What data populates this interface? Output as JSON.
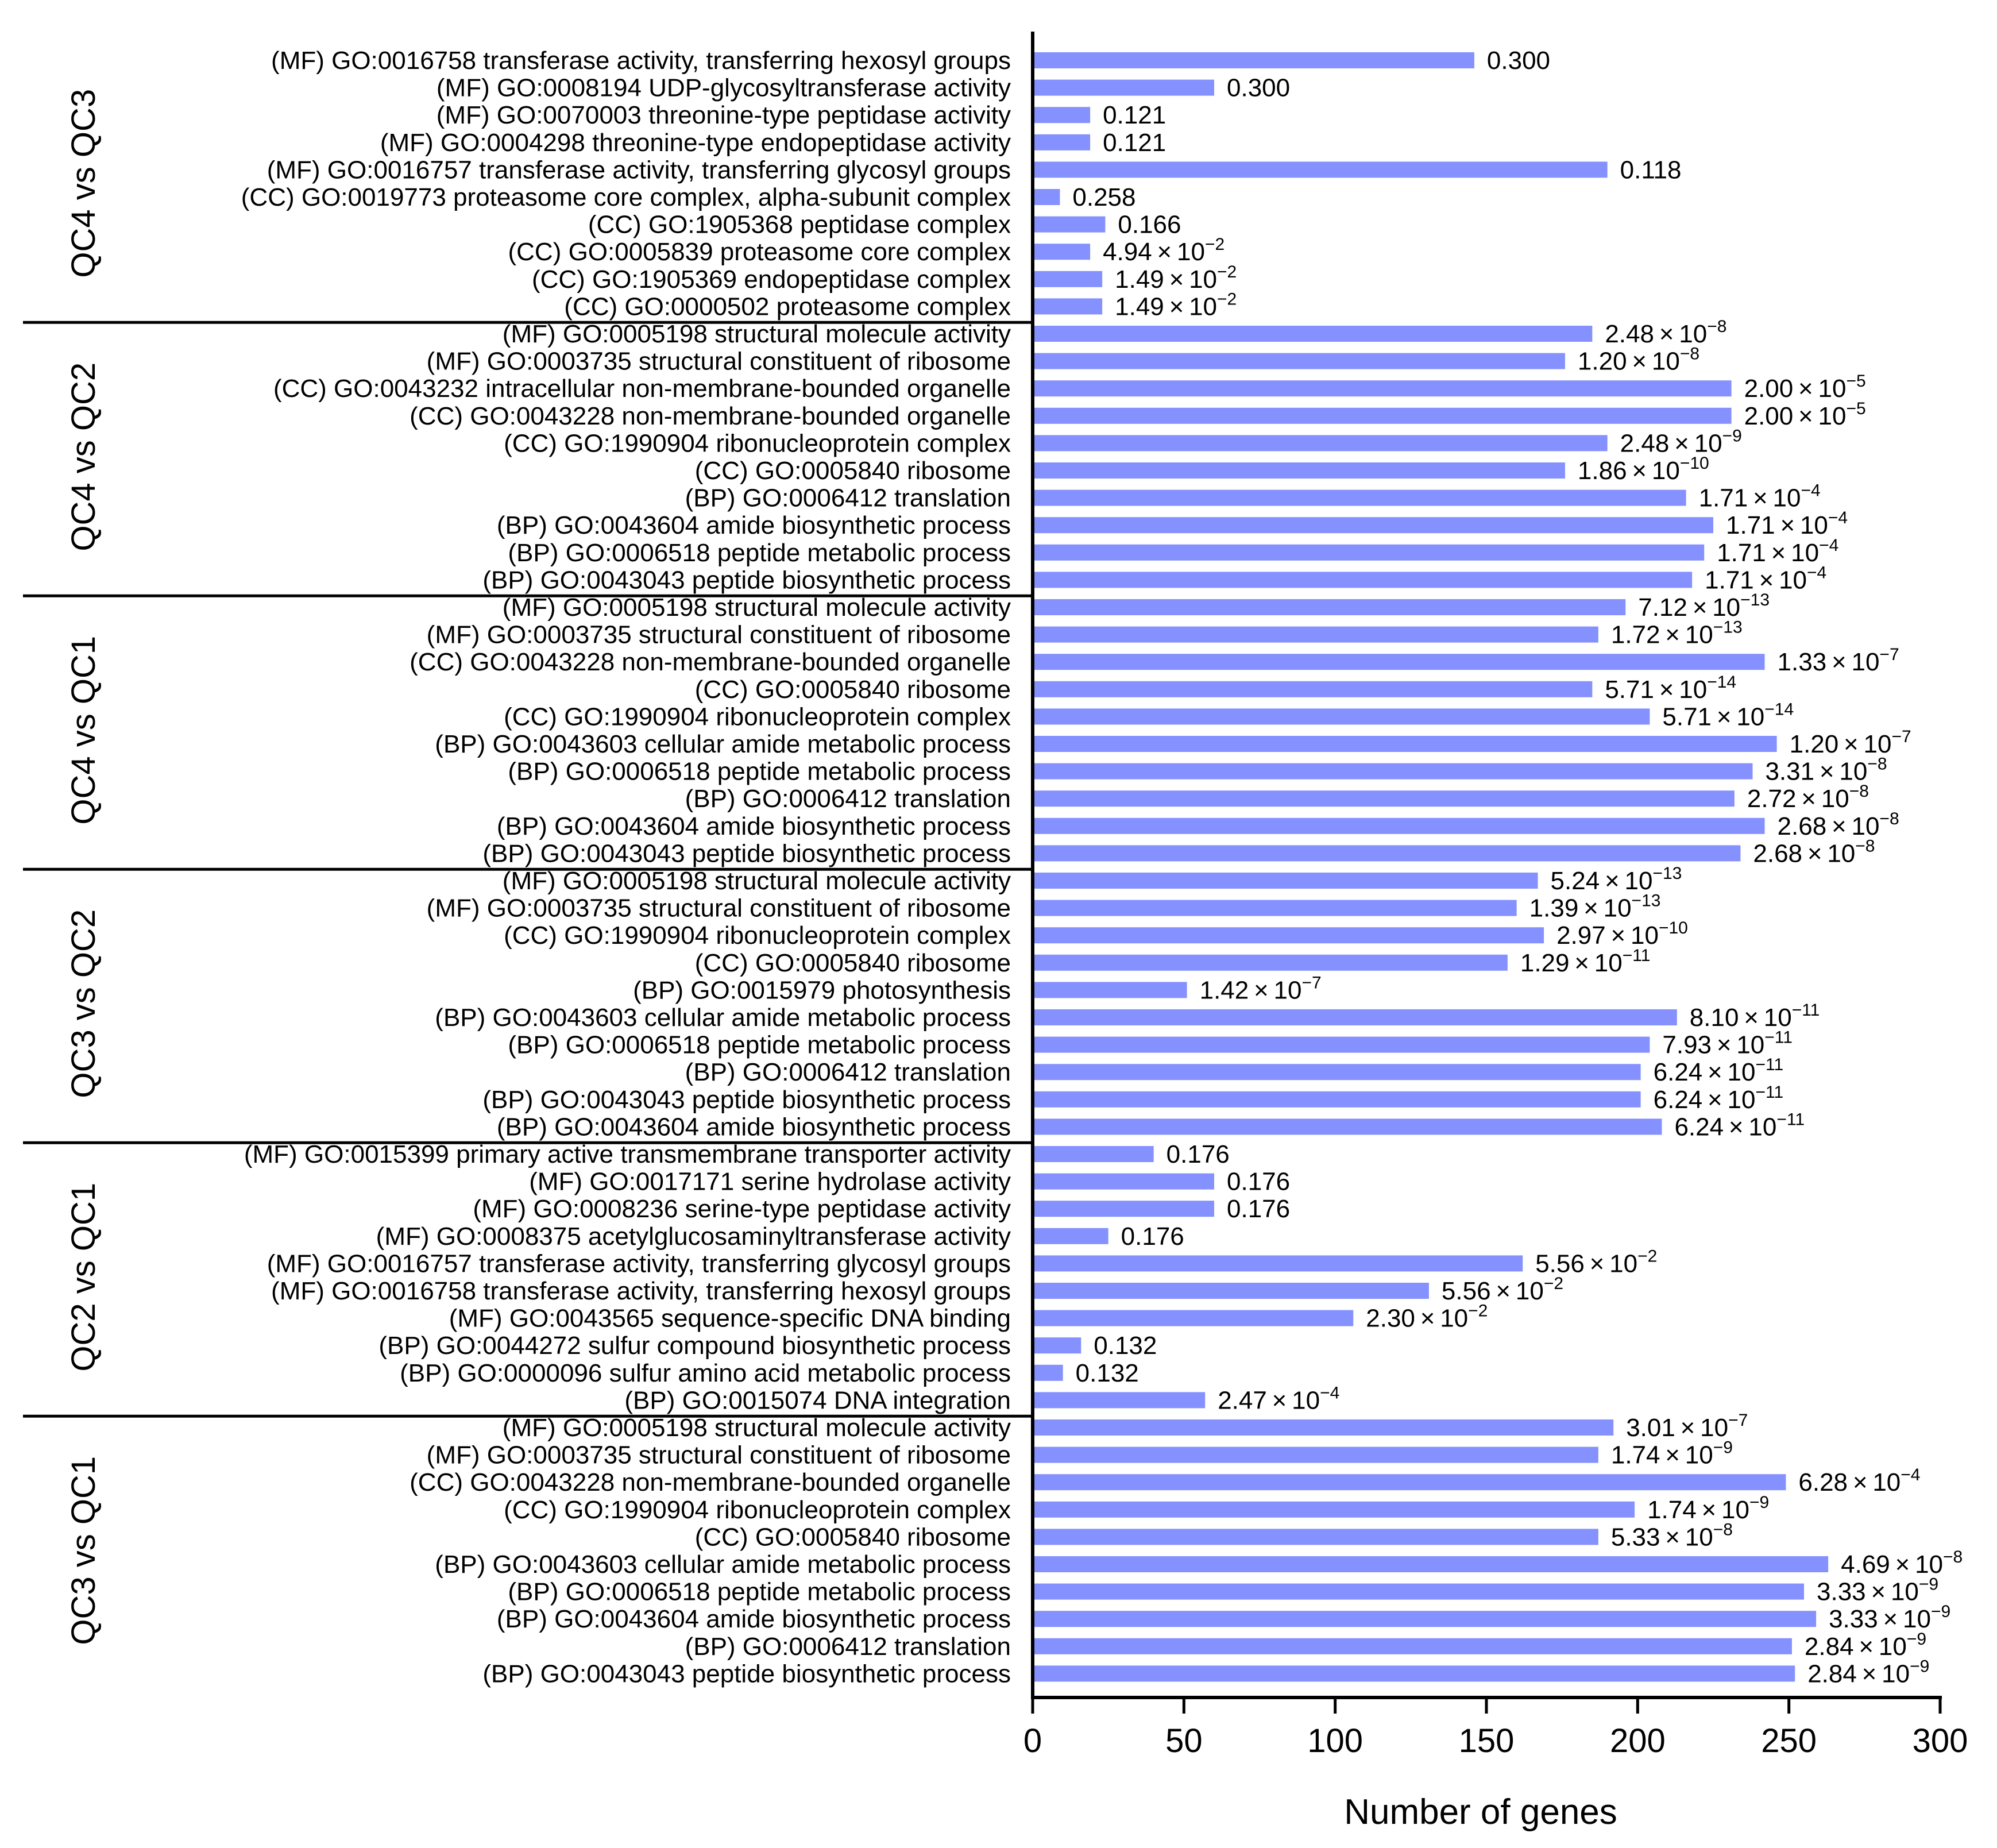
{
  "chart_data": {
    "type": "bar",
    "orientation": "horizontal",
    "xlabel": "Number of genes",
    "xlim": [
      0,
      300
    ],
    "xticks": [
      0,
      50,
      100,
      150,
      200,
      250,
      300
    ],
    "bar_color": "#8491ff",
    "groups": [
      {
        "name": "QC4 vs QC3",
        "items": [
          {
            "label": "(MF) GO:0016758 transferase activity, transferring hexosyl groups",
            "value": 146,
            "p": "0.300"
          },
          {
            "label": "(MF) GO:0008194 UDP-glycosyltransferase activity",
            "value": 60,
            "p": "0.300"
          },
          {
            "label": "(MF) GO:0070003 threonine-type peptidase activity",
            "value": 19,
            "p": "0.121"
          },
          {
            "label": "(MF) GO:0004298 threonine-type endopeptidase activity",
            "value": 19,
            "p": "0.121"
          },
          {
            "label": "(MF) GO:0016757 transferase activity, transferring glycosyl groups",
            "value": 190,
            "p": "0.118"
          },
          {
            "label": "(CC) GO:0019773 proteasome core complex, alpha-subunit complex",
            "value": 9,
            "p": "0.258"
          },
          {
            "label": "(CC) GO:1905368 peptidase complex",
            "value": 24,
            "p": "0.166"
          },
          {
            "label": "(CC) GO:0005839 proteasome core complex",
            "value": 19,
            "p": "4.94×10⁻²",
            "mant": "4.94",
            "exp": "−2"
          },
          {
            "label": "(CC) GO:1905369 endopeptidase complex",
            "value": 23,
            "p": "1.49×10⁻²",
            "mant": "1.49",
            "exp": "−2"
          },
          {
            "label": "(CC) GO:0000502 proteasome complex",
            "value": 23,
            "p": "1.49×10⁻²",
            "mant": "1.49",
            "exp": "−2"
          }
        ]
      },
      {
        "name": "QC4 vs QC2",
        "items": [
          {
            "label": "(MF) GO:0005198 structural molecule activity",
            "value": 185,
            "p": "2.48×10⁻⁸",
            "mant": "2.48",
            "exp": "−8"
          },
          {
            "label": "(MF) GO:0003735 structural constituent of ribosome",
            "value": 176,
            "p": "1.20×10⁻⁸",
            "mant": "1.20",
            "exp": "−8"
          },
          {
            "label": "(CC) GO:0043232 intracellular non-membrane-bounded organelle",
            "value": 231,
            "p": "2.00×10⁻⁵",
            "mant": "2.00",
            "exp": "−5"
          },
          {
            "label": "(CC) GO:0043228 non-membrane-bounded organelle",
            "value": 231,
            "p": "2.00×10⁻⁵",
            "mant": "2.00",
            "exp": "−5"
          },
          {
            "label": "(CC) GO:1990904 ribonucleoprotein complex",
            "value": 190,
            "p": "2.48×10⁻⁹",
            "mant": "2.48",
            "exp": "−9"
          },
          {
            "label": "(CC) GO:0005840 ribosome",
            "value": 176,
            "p": "1.86×10⁻¹⁰",
            "mant": "1.86",
            "exp": "−10"
          },
          {
            "label": "(BP) GO:0006412 translation",
            "value": 216,
            "p": "1.71×10⁻⁴",
            "mant": "1.71",
            "exp": "−4"
          },
          {
            "label": "(BP) GO:0043604 amide biosynthetic process",
            "value": 225,
            "p": "1.71×10⁻⁴",
            "mant": "1.71",
            "exp": "−4"
          },
          {
            "label": "(BP) GO:0006518 peptide metabolic process",
            "value": 222,
            "p": "1.71×10⁻⁴",
            "mant": "1.71",
            "exp": "−4"
          },
          {
            "label": "(BP) GO:0043043 peptide biosynthetic process",
            "value": 218,
            "p": "1.71×10⁻⁴",
            "mant": "1.71",
            "exp": "−4"
          }
        ]
      },
      {
        "name": "QC4 vs QC1",
        "items": [
          {
            "label": "(MF) GO:0005198 structural molecule activity",
            "value": 196,
            "p": "7.12×10⁻¹³",
            "mant": "7.12",
            "exp": "−13"
          },
          {
            "label": "(MF) GO:0003735 structural constituent of ribosome",
            "value": 187,
            "p": "1.72×10⁻¹³",
            "mant": "1.72",
            "exp": "−13"
          },
          {
            "label": "(CC) GO:0043228 non-membrane-bounded organelle",
            "value": 242,
            "p": "1.33×10⁻⁷",
            "mant": "1.33",
            "exp": "−7"
          },
          {
            "label": "(CC) GO:0005840 ribosome",
            "value": 185,
            "p": "5.71×10⁻¹⁴",
            "mant": "5.71",
            "exp": "−14"
          },
          {
            "label": "(CC) GO:1990904 ribonucleoprotein complex",
            "value": 204,
            "p": "5.71×10⁻¹⁴",
            "mant": "5.71",
            "exp": "−14"
          },
          {
            "label": "(BP) GO:0043603 cellular amide metabolic process",
            "value": 246,
            "p": "1.20×10⁻⁷",
            "mant": "1.20",
            "exp": "−7"
          },
          {
            "label": "(BP) GO:0006518 peptide metabolic process",
            "value": 238,
            "p": "3.31×10⁻⁸",
            "mant": "3.31",
            "exp": "−8"
          },
          {
            "label": "(BP) GO:0006412 translation",
            "value": 232,
            "p": "2.72×10⁻⁸",
            "mant": "2.72",
            "exp": "−8"
          },
          {
            "label": "(BP) GO:0043604 amide biosynthetic process",
            "value": 242,
            "p": "2.68×10⁻⁸",
            "mant": "2.68",
            "exp": "−8"
          },
          {
            "label": "(BP) GO:0043043 peptide biosynthetic process",
            "value": 234,
            "p": "2.68×10⁻⁸",
            "mant": "2.68",
            "exp": "−8"
          }
        ]
      },
      {
        "name": "QC3 vs QC2",
        "items": [
          {
            "label": "(MF) GO:0005198 structural molecule activity",
            "value": 167,
            "p": "5.24×10⁻¹³",
            "mant": "5.24",
            "exp": "−13"
          },
          {
            "label": "(MF) GO:0003735 structural constituent of ribosome",
            "value": 160,
            "p": "1.39×10⁻¹³",
            "mant": "1.39",
            "exp": "−13"
          },
          {
            "label": "(CC) GO:1990904 ribonucleoprotein complex",
            "value": 169,
            "p": "2.97×10⁻¹⁰",
            "mant": "2.97",
            "exp": "−10"
          },
          {
            "label": "(CC) GO:0005840 ribosome",
            "value": 157,
            "p": "1.29×10⁻¹¹",
            "mant": "1.29",
            "exp": "−11"
          },
          {
            "label": "(BP) GO:0015979 photosynthesis",
            "value": 51,
            "p": "1.42×10⁻⁷",
            "mant": "1.42",
            "exp": "−7"
          },
          {
            "label": "(BP) GO:0043603 cellular amide metabolic process",
            "value": 213,
            "p": "8.10×10⁻¹¹",
            "mant": "8.10",
            "exp": "−11"
          },
          {
            "label": "(BP) GO:0006518 peptide metabolic process",
            "value": 204,
            "p": "7.93×10⁻¹¹",
            "mant": "7.93",
            "exp": "−11"
          },
          {
            "label": "(BP) GO:0006412 translation",
            "value": 201,
            "p": "6.24×10⁻¹¹",
            "mant": "6.24",
            "exp": "−11"
          },
          {
            "label": "(BP) GO:0043043 peptide biosynthetic process",
            "value": 201,
            "p": "6.24×10⁻¹¹",
            "mant": "6.24",
            "exp": "−11"
          },
          {
            "label": "(BP) GO:0043604 amide biosynthetic process",
            "value": 208,
            "p": "6.24×10⁻¹¹",
            "mant": "6.24",
            "exp": "−11"
          }
        ]
      },
      {
        "name": "QC2 vs QC1",
        "items": [
          {
            "label": "(MF) GO:0015399 primary active transmembrane transporter activity",
            "value": 40,
            "p": "0.176"
          },
          {
            "label": "(MF) GO:0017171 serine hydrolase activity",
            "value": 60,
            "p": "0.176"
          },
          {
            "label": "(MF) GO:0008236 serine-type peptidase activity",
            "value": 60,
            "p": "0.176"
          },
          {
            "label": "(MF) GO:0008375 acetylglucosaminyltransferase activity",
            "value": 25,
            "p": "0.176"
          },
          {
            "label": "(MF) GO:0016757 transferase activity, transferring glycosyl groups",
            "value": 162,
            "p": "5.56×10⁻²",
            "mant": "5.56",
            "exp": "−2"
          },
          {
            "label": "(MF) GO:0016758 transferase activity, transferring hexosyl groups",
            "value": 131,
            "p": "5.56×10⁻²",
            "mant": "5.56",
            "exp": "−2"
          },
          {
            "label": "(MF) GO:0043565 sequence-specific DNA binding",
            "value": 106,
            "p": "2.30×10⁻²",
            "mant": "2.30",
            "exp": "−2"
          },
          {
            "label": "(BP) GO:0044272 sulfur compound biosynthetic process",
            "value": 16,
            "p": "0.132"
          },
          {
            "label": "(BP) GO:0000096 sulfur amino acid metabolic process",
            "value": 10,
            "p": "0.132"
          },
          {
            "label": "(BP) GO:0015074 DNA integration",
            "value": 57,
            "p": "2.47×10⁻⁴",
            "mant": "2.47",
            "exp": "−4"
          }
        ]
      },
      {
        "name": "QC3 vs QC1",
        "items": [
          {
            "label": "(MF) GO:0005198 structural molecule activity",
            "value": 192,
            "p": "3.01×10⁻⁷",
            "mant": "3.01",
            "exp": "−7"
          },
          {
            "label": "(MF) GO:0003735 structural constituent of ribosome",
            "value": 187,
            "p": "1.74×10⁻⁹",
            "mant": "1.74",
            "exp": "−9"
          },
          {
            "label": "(CC) GO:0043228 non-membrane-bounded organelle",
            "value": 249,
            "p": "6.28×10⁻⁴",
            "mant": "6.28",
            "exp": "−4"
          },
          {
            "label": "(CC) GO:1990904 ribonucleoprotein complex",
            "value": 199,
            "p": "1.74×10⁻⁹",
            "mant": "1.74",
            "exp": "−9"
          },
          {
            "label": "(CC) GO:0005840 ribosome",
            "value": 187,
            "p": "5.33×10⁻⁸",
            "mant": "5.33",
            "exp": "−8"
          },
          {
            "label": "(BP) GO:0043603 cellular amide metabolic process",
            "value": 263,
            "p": "4.69×10⁻⁸",
            "mant": "4.69",
            "exp": "−8"
          },
          {
            "label": "(BP) GO:0006518 peptide metabolic process",
            "value": 255,
            "p": "3.33×10⁻⁹",
            "mant": "3.33",
            "exp": "−9"
          },
          {
            "label": "(BP) GO:0043604 amide biosynthetic process",
            "value": 259,
            "p": "3.33×10⁻⁹",
            "mant": "3.33",
            "exp": "−9"
          },
          {
            "label": "(BP) GO:0006412 translation",
            "value": 251,
            "p": "2.84×10⁻⁹",
            "mant": "2.84",
            "exp": "−9"
          },
          {
            "label": "(BP) GO:0043043 peptide biosynthetic process",
            "value": 252,
            "p": "2.84×10⁻⁹",
            "mant": "2.84",
            "exp": "−9"
          }
        ]
      }
    ]
  }
}
